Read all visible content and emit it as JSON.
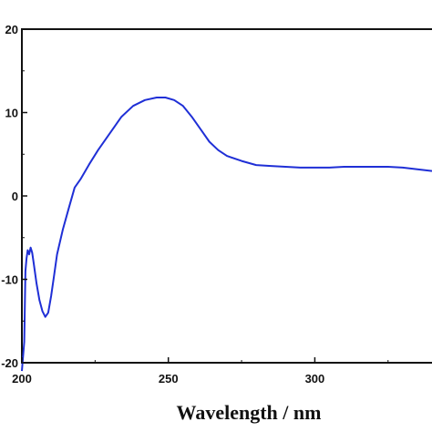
{
  "chart_data": {
    "type": "line",
    "title": "",
    "xlabel": "Wavelength / nm",
    "ylabel": "",
    "xlim": [
      200,
      340
    ],
    "ylim": [
      -20,
      20
    ],
    "x_ticks": [
      200,
      250,
      300
    ],
    "x_tick_labels": [
      "200",
      "250",
      "300"
    ],
    "y_ticks": [
      20,
      10,
      0,
      -10,
      -20
    ],
    "y_tick_labels": [
      "20",
      "10",
      "0",
      "-10",
      "-20"
    ],
    "grid": false,
    "legend": "none",
    "series": [
      {
        "color": "#1f2fd6",
        "x": [
          200.0,
          200.8,
          201.2,
          201.6,
          202.0,
          202.5,
          203.0,
          203.5,
          204.0,
          205.0,
          206.0,
          207.0,
          208.0,
          209.0,
          210.0,
          211.0,
          212.0,
          214.0,
          216.0,
          218.0,
          220.0,
          223.0,
          226.0,
          230.0,
          234.0,
          238.0,
          242.0,
          246.0,
          249.0,
          252.0,
          255.0,
          258.0,
          261.0,
          264.0,
          267.0,
          270.0,
          275.0,
          280.0,
          285.0,
          290.0,
          295.0,
          300.0,
          305.0,
          310.0,
          315.0,
          320.0,
          325.0,
          330.0,
          335.0,
          340.0
        ],
        "y": [
          -21.0,
          -17.5,
          -9.0,
          -7.5,
          -6.5,
          -7.0,
          -6.2,
          -6.8,
          -8.0,
          -10.5,
          -12.5,
          -13.8,
          -14.5,
          -14.0,
          -12.0,
          -9.5,
          -7.0,
          -4.0,
          -1.5,
          1.0,
          2.0,
          3.8,
          5.5,
          7.5,
          9.5,
          10.8,
          11.5,
          11.8,
          11.8,
          11.5,
          10.8,
          9.5,
          8.0,
          6.5,
          5.5,
          4.8,
          4.2,
          3.7,
          3.6,
          3.5,
          3.4,
          3.4,
          3.4,
          3.5,
          3.5,
          3.5,
          3.5,
          3.4,
          3.2,
          3.0
        ]
      }
    ]
  }
}
